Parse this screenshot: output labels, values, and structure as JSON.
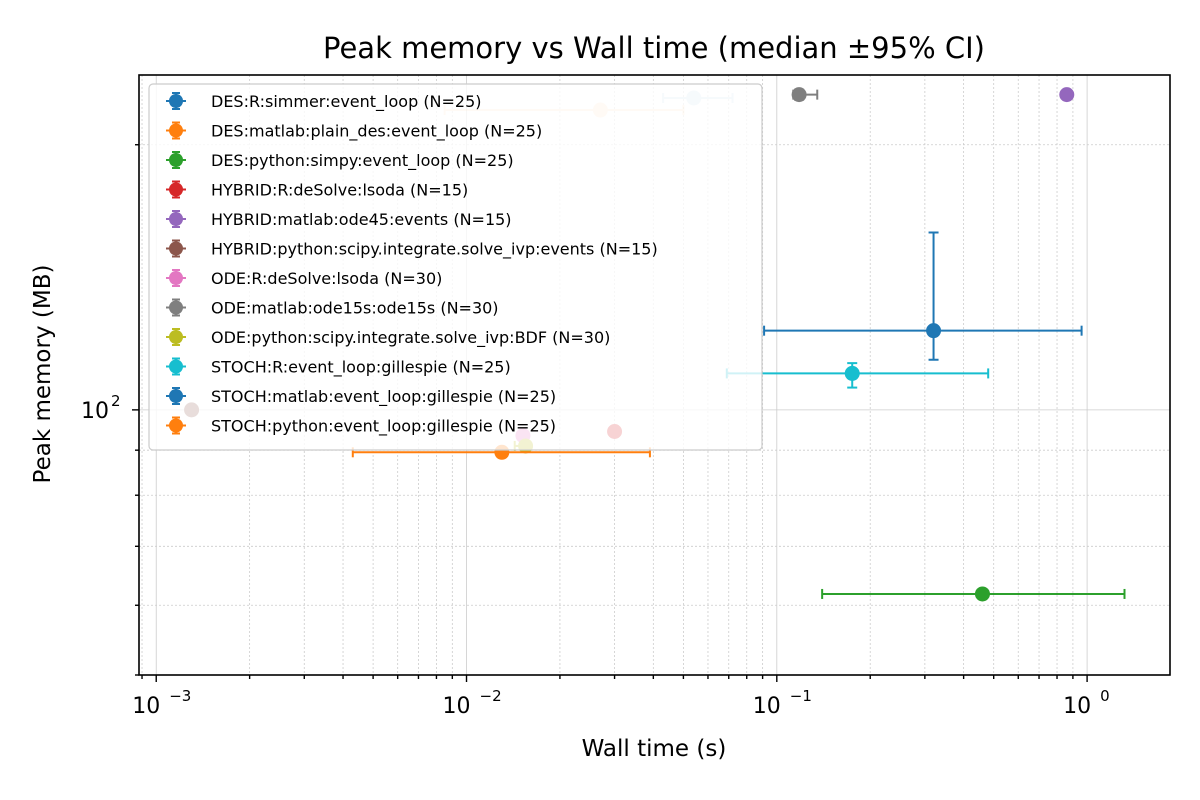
{
  "chart_data": {
    "type": "scatter",
    "title": "Peak memory vs Wall time (median ±95% CI)",
    "xlabel": "Wall time (s)",
    "ylabel": "Peak memory (MB)",
    "x_scale": "log",
    "y_scale": "log",
    "xlim": [
      0.00088,
      1.85
    ],
    "ylim": [
      50,
      240
    ],
    "x_ticks": [
      {
        "value": 0.001,
        "base": "10",
        "exp": "−3"
      },
      {
        "value": 0.01,
        "base": "10",
        "exp": "−2"
      },
      {
        "value": 0.1,
        "base": "10",
        "exp": "−1"
      },
      {
        "value": 1,
        "base": "10",
        "exp": "0"
      }
    ],
    "y_ticks": [
      {
        "value": 100,
        "base": "10",
        "exp": "2"
      }
    ],
    "grid": true,
    "legend_position": "top-left",
    "series": [
      {
        "name": "DES:R:simmer:event_loop (N=25)",
        "color": "#1f77b4",
        "x": 0.054,
        "y": 226,
        "xerr": [
          0.043,
          0.072
        ],
        "yerr": null,
        "faded": true
      },
      {
        "name": "DES:matlab:plain_des:event_loop (N=25)",
        "color": "#ff7f0e",
        "x": 0.027,
        "y": 219,
        "xerr": [
          0.0085,
          0.05
        ],
        "yerr": null,
        "faded": true
      },
      {
        "name": "DES:python:simpy:event_loop (N=25)",
        "color": "#2ca02c",
        "x": 0.46,
        "y": 61.8,
        "xerr": [
          0.14,
          1.32
        ],
        "yerr": null,
        "faded": false
      },
      {
        "name": "HYBRID:R:deSolve:lsoda (N=15)",
        "color": "#d62728",
        "x": 0.03,
        "y": 94.5,
        "xerr": null,
        "yerr": null,
        "faded": false
      },
      {
        "name": "HYBRID:matlab:ode45:events (N=15)",
        "color": "#9467bd",
        "x": 0.86,
        "y": 228,
        "xerr": null,
        "yerr": null,
        "faded": false
      },
      {
        "name": "HYBRID:python:scipy.integrate.solve_ivp:events (N=15)",
        "color": "#8c564b",
        "x": 0.0013,
        "y": 100,
        "xerr": null,
        "yerr": null,
        "faded": false
      },
      {
        "name": "ODE:R:deSolve:lsoda (N=30)",
        "color": "#e377c2",
        "x": 0.0152,
        "y": 93.5,
        "xerr": [
          0.0147,
          0.0158
        ],
        "yerr": null,
        "faded": false
      },
      {
        "name": "ODE:matlab:ode15s:ode15s (N=30)",
        "color": "#7f7f7f",
        "x": 0.118,
        "y": 228,
        "xerr": [
          0.113,
          0.135
        ],
        "yerr": [
          225,
          231
        ],
        "faded": false
      },
      {
        "name": "ODE:python:scipy.integrate.solve_ivp:BDF (N=30)",
        "color": "#bcbd22",
        "x": 0.0155,
        "y": 91,
        "xerr": [
          0.0143,
          0.0158
        ],
        "yerr": null,
        "faded": false
      },
      {
        "name": "STOCH:R:event_loop:gillespie (N=25)",
        "color": "#17becf",
        "x": 0.175,
        "y": 110,
        "xerr": [
          0.069,
          0.48
        ],
        "yerr": [
          106,
          113
        ],
        "faded": false
      },
      {
        "name": "STOCH:matlab:event_loop:gillespie (N=25)",
        "color": "#1f77b4",
        "x": 0.32,
        "y": 123,
        "xerr": [
          0.091,
          0.96
        ],
        "yerr": [
          114,
          159
        ],
        "faded": false
      },
      {
        "name": "STOCH:python:event_loop:gillespie (N=25)",
        "color": "#ff7f0e",
        "x": 0.013,
        "y": 89.5,
        "xerr": [
          0.0043,
          0.039
        ],
        "yerr": null,
        "faded": false
      }
    ]
  }
}
